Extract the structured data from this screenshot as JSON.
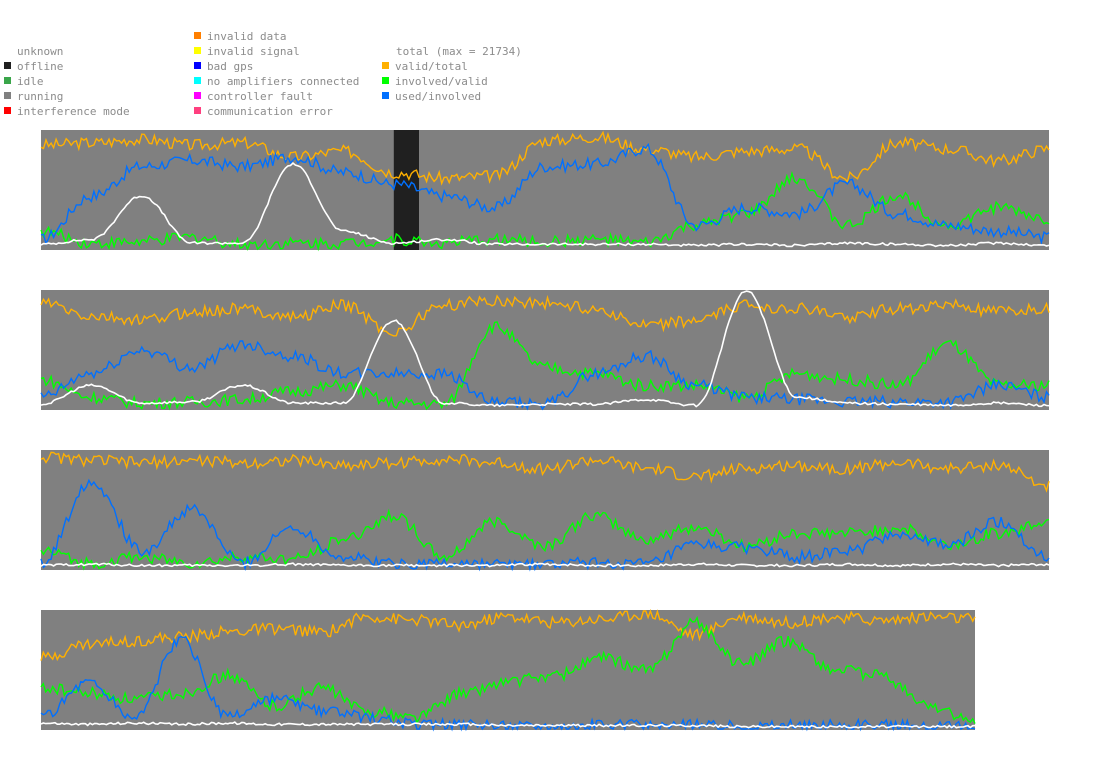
{
  "legend": {
    "status": [
      {
        "label": "unknown",
        "color": "#ffffff"
      },
      {
        "label": "offline",
        "color": "#202020"
      },
      {
        "label": "idle",
        "color": "#3aa64a"
      },
      {
        "label": "running",
        "color": "#808080"
      },
      {
        "label": "interference mode",
        "color": "#ff0000"
      }
    ],
    "errors": [
      {
        "label": "invalid data",
        "color": "#ff7f00"
      },
      {
        "label": "invalid signal",
        "color": "#ffff00"
      },
      {
        "label": "bad gps",
        "color": "#0000ff"
      },
      {
        "label": "no amplifiers connected",
        "color": "#00ffff"
      },
      {
        "label": "controller fault",
        "color": "#ff00ff"
      },
      {
        "label": "communication error",
        "color": "#ff3f7f"
      }
    ],
    "series_header": "total (max = 21734)",
    "series": [
      {
        "label": "valid/total",
        "color": "#ffb000"
      },
      {
        "label": "involved/valid",
        "color": "#00ff00"
      },
      {
        "label": "used/involved",
        "color": "#0070ff"
      }
    ],
    "total_color": "#ffffff"
  },
  "chart_data": {
    "type": "line",
    "title": "",
    "xlabel": "",
    "ylabel": "",
    "ylim": [
      0,
      1
    ],
    "grid": false,
    "legend_placement": "top-left",
    "background_status_color": "#808080",
    "panels": [
      {
        "x": [
          0,
          0.05,
          0.1,
          0.15,
          0.2,
          0.25,
          0.3,
          0.35,
          0.4,
          0.45,
          0.5,
          0.55,
          0.6,
          0.65,
          0.7,
          0.75,
          0.8,
          0.85,
          0.9,
          0.95,
          1.0
        ],
        "series": [
          {
            "key": "valid_total",
            "color": "#ffb000",
            "values": [
              0.88,
              0.9,
              0.93,
              0.88,
              0.9,
              0.78,
              0.83,
              0.65,
              0.6,
              0.62,
              0.92,
              0.95,
              0.85,
              0.78,
              0.83,
              0.85,
              0.6,
              0.9,
              0.85,
              0.75,
              0.85
            ]
          },
          {
            "key": "involved_valid",
            "color": "#00ff00",
            "values": [
              0.15,
              0.05,
              0.06,
              0.1,
              0.04,
              0.05,
              0.05,
              0.08,
              0.05,
              0.08,
              0.06,
              0.08,
              0.05,
              0.2,
              0.3,
              0.6,
              0.2,
              0.45,
              0.2,
              0.35,
              0.25
            ]
          },
          {
            "key": "used_involved",
            "color": "#0070ff",
            "values": [
              0.08,
              0.45,
              0.7,
              0.75,
              0.7,
              0.78,
              0.65,
              0.55,
              0.45,
              0.35,
              0.7,
              0.72,
              0.85,
              0.2,
              0.35,
              0.3,
              0.55,
              0.3,
              0.2,
              0.15,
              0.1
            ]
          },
          {
            "key": "total",
            "color": "#ffffff",
            "values": [
              0.04,
              0.08,
              0.45,
              0.05,
              0.05,
              0.72,
              0.15,
              0.05,
              0.08,
              0.04,
              0.04,
              0.04,
              0.04,
              0.03,
              0.04,
              0.03,
              0.05,
              0.04,
              0.03,
              0.05,
              0.03
            ]
          }
        ],
        "status_bands": [
          {
            "x_start": 0.35,
            "x_end": 0.375,
            "status": "offline"
          }
        ]
      },
      {
        "x": [
          0,
          0.05,
          0.1,
          0.15,
          0.2,
          0.25,
          0.3,
          0.35,
          0.4,
          0.45,
          0.5,
          0.55,
          0.6,
          0.65,
          0.7,
          0.75,
          0.8,
          0.85,
          0.9,
          0.95,
          1.0
        ],
        "series": [
          {
            "key": "valid_total",
            "color": "#ffb000",
            "values": [
              0.9,
              0.78,
              0.75,
              0.82,
              0.85,
              0.78,
              0.88,
              0.65,
              0.88,
              0.92,
              0.9,
              0.85,
              0.7,
              0.75,
              0.88,
              0.85,
              0.78,
              0.85,
              0.88,
              0.82,
              0.85
            ]
          },
          {
            "key": "involved_valid",
            "color": "#00ff00",
            "values": [
              0.25,
              0.1,
              0.05,
              0.06,
              0.08,
              0.15,
              0.2,
              0.05,
              0.04,
              0.7,
              0.35,
              0.3,
              0.2,
              0.2,
              0.1,
              0.3,
              0.25,
              0.2,
              0.55,
              0.2,
              0.2
            ]
          },
          {
            "key": "used_involved",
            "color": "#0070ff",
            "values": [
              0.1,
              0.3,
              0.5,
              0.35,
              0.55,
              0.45,
              0.3,
              0.3,
              0.3,
              0.05,
              0.04,
              0.3,
              0.45,
              0.2,
              0.1,
              0.08,
              0.06,
              0.06,
              0.06,
              0.2,
              0.1
            ]
          },
          {
            "key": "total",
            "color": "#ffffff",
            "values": [
              0.04,
              0.2,
              0.05,
              0.06,
              0.2,
              0.05,
              0.05,
              0.75,
              0.05,
              0.03,
              0.04,
              0.04,
              0.08,
              0.03,
              1.0,
              0.1,
              0.05,
              0.04,
              0.03,
              0.05,
              0.03
            ]
          }
        ],
        "status_bands": []
      },
      {
        "x": [
          0,
          0.05,
          0.1,
          0.15,
          0.2,
          0.25,
          0.3,
          0.35,
          0.4,
          0.45,
          0.5,
          0.55,
          0.6,
          0.65,
          0.7,
          0.75,
          0.8,
          0.85,
          0.9,
          0.95,
          1.0
        ],
        "series": [
          {
            "key": "valid_total",
            "color": "#ffb000",
            "values": [
              0.95,
              0.92,
              0.9,
              0.92,
              0.9,
              0.92,
              0.88,
              0.9,
              0.93,
              0.9,
              0.85,
              0.92,
              0.85,
              0.78,
              0.85,
              0.88,
              0.85,
              0.9,
              0.85,
              0.88,
              0.7
            ]
          },
          {
            "key": "involved_valid",
            "color": "#00ff00",
            "values": [
              0.15,
              0.05,
              0.1,
              0.05,
              0.1,
              0.08,
              0.25,
              0.45,
              0.1,
              0.4,
              0.2,
              0.45,
              0.25,
              0.35,
              0.2,
              0.3,
              0.3,
              0.35,
              0.2,
              0.3,
              0.4
            ]
          },
          {
            "key": "used_involved",
            "color": "#0070ff",
            "values": [
              0.05,
              0.75,
              0.15,
              0.5,
              0.05,
              0.35,
              0.1,
              0.05,
              0.05,
              0.04,
              0.04,
              0.05,
              0.04,
              0.2,
              0.18,
              0.1,
              0.15,
              0.3,
              0.2,
              0.4,
              0.1
            ]
          },
          {
            "key": "total",
            "color": "#ffffff",
            "values": [
              0.03,
              0.04,
              0.03,
              0.03,
              0.03,
              0.04,
              0.03,
              0.03,
              0.03,
              0.03,
              0.04,
              0.03,
              0.03,
              0.04,
              0.03,
              0.03,
              0.04,
              0.03,
              0.04,
              0.03,
              0.04
            ]
          }
        ],
        "status_bands": []
      },
      {
        "x": [
          0,
          0.05,
          0.1,
          0.15,
          0.2,
          0.25,
          0.3,
          0.35,
          0.4,
          0.45,
          0.5,
          0.55,
          0.6,
          0.65,
          0.7,
          0.75,
          0.8,
          0.85,
          0.9,
          0.95,
          1.0
        ],
        "series": [
          {
            "key": "valid_total",
            "color": "#ffb000",
            "values": [
              0.6,
              0.72,
              0.75,
              0.78,
              0.82,
              0.85,
              0.82,
              0.95,
              0.92,
              0.88,
              0.95,
              0.9,
              0.93,
              0.98,
              0.8,
              0.95,
              0.9,
              0.95,
              0.92,
              0.95,
              0.93
            ]
          },
          {
            "key": "involved_valid",
            "color": "#00ff00",
            "values": [
              0.35,
              0.3,
              0.25,
              0.3,
              0.45,
              0.2,
              0.35,
              0.15,
              0.1,
              0.3,
              0.4,
              0.45,
              0.6,
              0.5,
              0.9,
              0.55,
              0.75,
              0.5,
              0.45,
              0.2,
              0.05
            ]
          },
          {
            "key": "used_involved",
            "color": "#0070ff",
            "values": [
              0.1,
              0.4,
              0.1,
              0.75,
              0.1,
              0.25,
              0.15,
              0.1,
              0.04,
              0.03,
              0.03,
              0.03,
              0.03,
              0.03,
              0.03,
              0.03,
              0.03,
              0.03,
              0.03,
              0.02,
              0.02
            ]
          },
          {
            "key": "total",
            "color": "#ffffff",
            "values": [
              0.05,
              0.04,
              0.05,
              0.04,
              0.05,
              0.04,
              0.04,
              0.04,
              0.04,
              0.04,
              0.03,
              0.03,
              0.03,
              0.03,
              0.03,
              0.02,
              0.02,
              0.02,
              0.02,
              0.02,
              0.02
            ]
          }
        ],
        "status_bands": []
      }
    ]
  }
}
